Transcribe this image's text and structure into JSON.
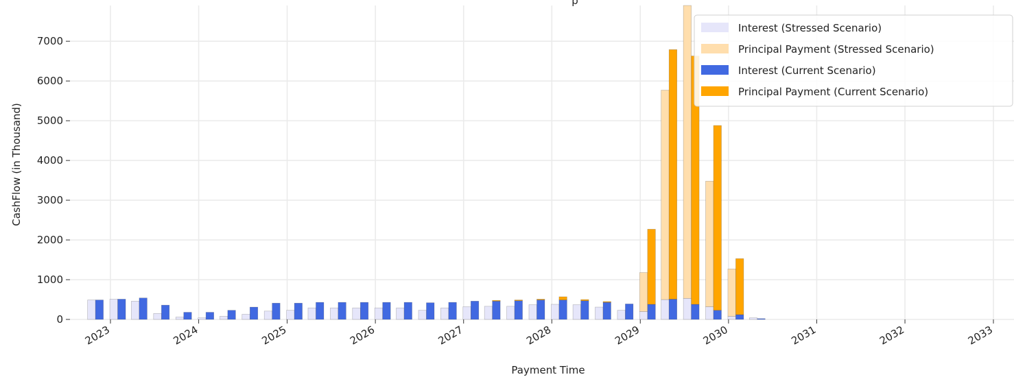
{
  "chart_data": {
    "type": "bar",
    "subtype": "stacked-grouped",
    "title": "",
    "title_visible_fragment": "p",
    "xlabel": "Payment Time",
    "ylabel": "CashFlow (in Thousand)",
    "ylim": [
      0,
      7900
    ],
    "yticks": [
      0,
      1000,
      2000,
      3000,
      4000,
      5000,
      6000,
      7000
    ],
    "xticks": [
      "2023",
      "2024",
      "2025",
      "2026",
      "2027",
      "2028",
      "2029",
      "2030",
      "2031",
      "2032",
      "2033"
    ],
    "x_axis_type": "date",
    "grid": true,
    "legend_position": "top-right",
    "colors": {
      "interest_stressed": "#e6e6fa",
      "principal_stressed": "#ffdead",
      "interest_current": "#4169e1",
      "principal_current": "#ffa500"
    },
    "legend": [
      {
        "label": "Interest (Stressed Scenario)",
        "color_key": "interest_stressed"
      },
      {
        "label": "Principal Payment (Stressed Scenario)",
        "color_key": "principal_stressed"
      },
      {
        "label": "Interest (Current Scenario)",
        "color_key": "interest_current"
      },
      {
        "label": "Principal Payment (Current Scenario)",
        "color_key": "principal_current"
      }
    ],
    "payment_dates": [
      "2022-10-31",
      "2023-01-31",
      "2023-04-30",
      "2023-07-31",
      "2023-10-31",
      "2024-01-31",
      "2024-04-30",
      "2024-07-31",
      "2024-10-31",
      "2025-01-31",
      "2025-04-30",
      "2025-07-31",
      "2025-10-31",
      "2026-01-31",
      "2026-04-30",
      "2026-07-31",
      "2026-10-31",
      "2027-01-31",
      "2027-04-30",
      "2027-07-31",
      "2027-10-31",
      "2028-01-31",
      "2028-04-30",
      "2028-07-31",
      "2028-10-31",
      "2029-01-31",
      "2029-04-30",
      "2029-07-31",
      "2029-10-31",
      "2030-01-31",
      "2030-04-30",
      "2030-07-31"
    ],
    "series": [
      {
        "name": "Interest (Stressed Scenario)",
        "values": [
          490,
          510,
          460,
          150,
          60,
          40,
          80,
          130,
          210,
          230,
          290,
          290,
          290,
          290,
          290,
          230,
          290,
          320,
          330,
          330,
          370,
          380,
          370,
          310,
          230,
          200,
          500,
          530,
          320,
          80,
          40,
          0
        ]
      },
      {
        "name": "Principal Payment (Stressed Scenario)",
        "values": [
          0,
          0,
          0,
          0,
          0,
          0,
          0,
          0,
          0,
          0,
          0,
          0,
          0,
          0,
          0,
          0,
          0,
          0,
          0,
          0,
          0,
          0,
          0,
          0,
          0,
          980,
          5270,
          7370,
          3160,
          1190,
          0,
          0
        ]
      },
      {
        "name": "Interest (Current Scenario)",
        "values": [
          490,
          510,
          540,
          360,
          180,
          180,
          230,
          310,
          410,
          410,
          430,
          430,
          430,
          430,
          430,
          420,
          430,
          460,
          460,
          470,
          490,
          490,
          470,
          430,
          390,
          380,
          510,
          380,
          230,
          120,
          20,
          0
        ]
      },
      {
        "name": "Principal Payment (Current Scenario)",
        "values": [
          0,
          0,
          0,
          0,
          0,
          0,
          0,
          0,
          0,
          0,
          0,
          0,
          0,
          0,
          0,
          0,
          0,
          0,
          20,
          20,
          20,
          80,
          30,
          20,
          0,
          1890,
          6280,
          6250,
          4650,
          1410,
          0,
          0
        ]
      }
    ]
  }
}
